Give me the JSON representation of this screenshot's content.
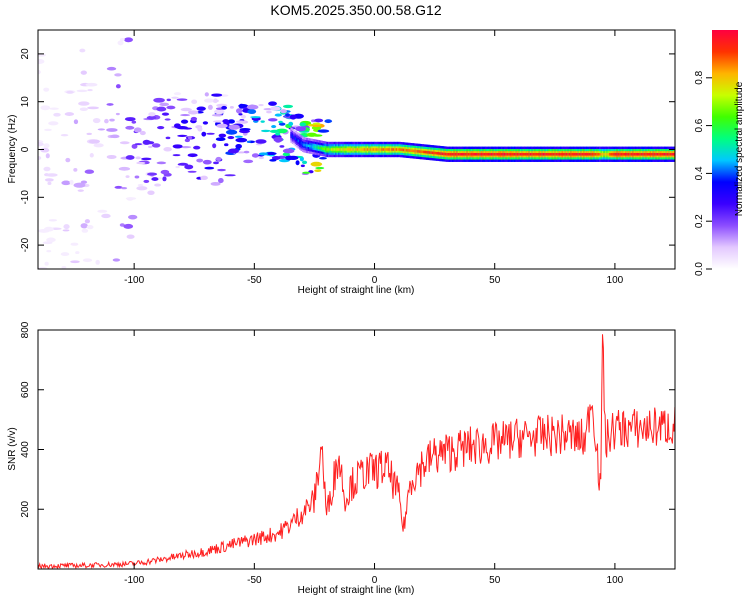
{
  "figure_title": "KOM5.2025.350.00.58.G12",
  "colorbar": {
    "label": "Normalized spectral amplitude",
    "ticks": [
      "0.0",
      "0.2",
      "0.4",
      "0.6",
      "0.8"
    ],
    "tick_values": [
      0.0,
      0.2,
      0.4,
      0.6,
      0.8
    ],
    "range": [
      0.0,
      1.0
    ],
    "colormap": [
      "#ffffff",
      "#e3c8ff",
      "#8c4dff",
      "#3a00ff",
      "#0000ff",
      "#00c8ff",
      "#00ff80",
      "#40ff00",
      "#c8ff00",
      "#ffb400",
      "#ff3200",
      "#ff0040"
    ]
  },
  "chart_data": [
    {
      "type": "heatmap",
      "id": "spectrogram",
      "title": "",
      "xlabel": "Height of straight line (km)",
      "ylabel": "Frequency (Hz)",
      "xlim": [
        -140,
        125
      ],
      "ylim": [
        -25,
        25
      ],
      "xticks": [
        -100,
        -50,
        0,
        50,
        100
      ],
      "xtick_labels": [
        "-100",
        "-50",
        "0",
        "50",
        "100"
      ],
      "yticks": [
        -20,
        -10,
        0,
        10,
        20
      ],
      "ytick_labels": [
        "-20",
        "-10",
        "0",
        "10",
        "20"
      ],
      "ridge": {
        "x": [
          -140,
          -120,
          -100,
          -80,
          -60,
          -45,
          -35,
          -30,
          -25,
          -20,
          -10,
          0,
          10,
          20,
          30,
          50,
          70,
          90,
          95,
          100,
          125
        ],
        "freq": [
          -4,
          -3,
          0,
          2,
          3,
          4,
          3,
          1,
          0.5,
          0,
          0,
          0,
          0,
          -0.5,
          -1,
          -1,
          -1,
          -1,
          -1,
          -1,
          -1
        ],
        "amplitude": [
          0.05,
          0.1,
          0.15,
          0.2,
          0.25,
          0.3,
          0.35,
          0.4,
          0.5,
          0.7,
          0.8,
          0.85,
          0.85,
          0.9,
          0.95,
          0.95,
          0.95,
          0.95,
          0.8,
          0.95,
          0.95
        ]
      },
      "noise_extent_km": [
        -140,
        -25
      ]
    },
    {
      "type": "line",
      "id": "snr",
      "title": "",
      "xlabel": "Height of straight line (km)",
      "ylabel": "SNR (v/v)",
      "xlim": [
        -140,
        125
      ],
      "ylim": [
        0,
        800
      ],
      "xticks": [
        -100,
        -50,
        0,
        50,
        100
      ],
      "xtick_labels": [
        "-100",
        "-50",
        "0",
        "50",
        "100"
      ],
      "yticks": [
        200,
        400,
        600,
        800
      ],
      "ytick_labels": [
        "200",
        "400",
        "600",
        "800"
      ],
      "line_color": "#ff2020",
      "series": [
        {
          "name": "SNR",
          "x": [
            -140,
            -120,
            -100,
            -90,
            -80,
            -70,
            -60,
            -50,
            -40,
            -35,
            -30,
            -25,
            -22,
            -20,
            -18,
            -15,
            -12,
            -10,
            -5,
            0,
            5,
            10,
            12,
            15,
            20,
            25,
            30,
            40,
            50,
            60,
            70,
            80,
            88,
            90,
            92,
            94,
            95,
            96,
            98,
            100,
            110,
            125
          ],
          "values": [
            10,
            12,
            18,
            30,
            45,
            60,
            80,
            100,
            120,
            150,
            190,
            230,
            420,
            180,
            260,
            380,
            230,
            280,
            320,
            330,
            340,
            250,
            130,
            300,
            350,
            380,
            390,
            410,
            420,
            440,
            445,
            450,
            430,
            580,
            460,
            250,
            800,
            420,
            450,
            470,
            470,
            480
          ]
        }
      ]
    }
  ]
}
